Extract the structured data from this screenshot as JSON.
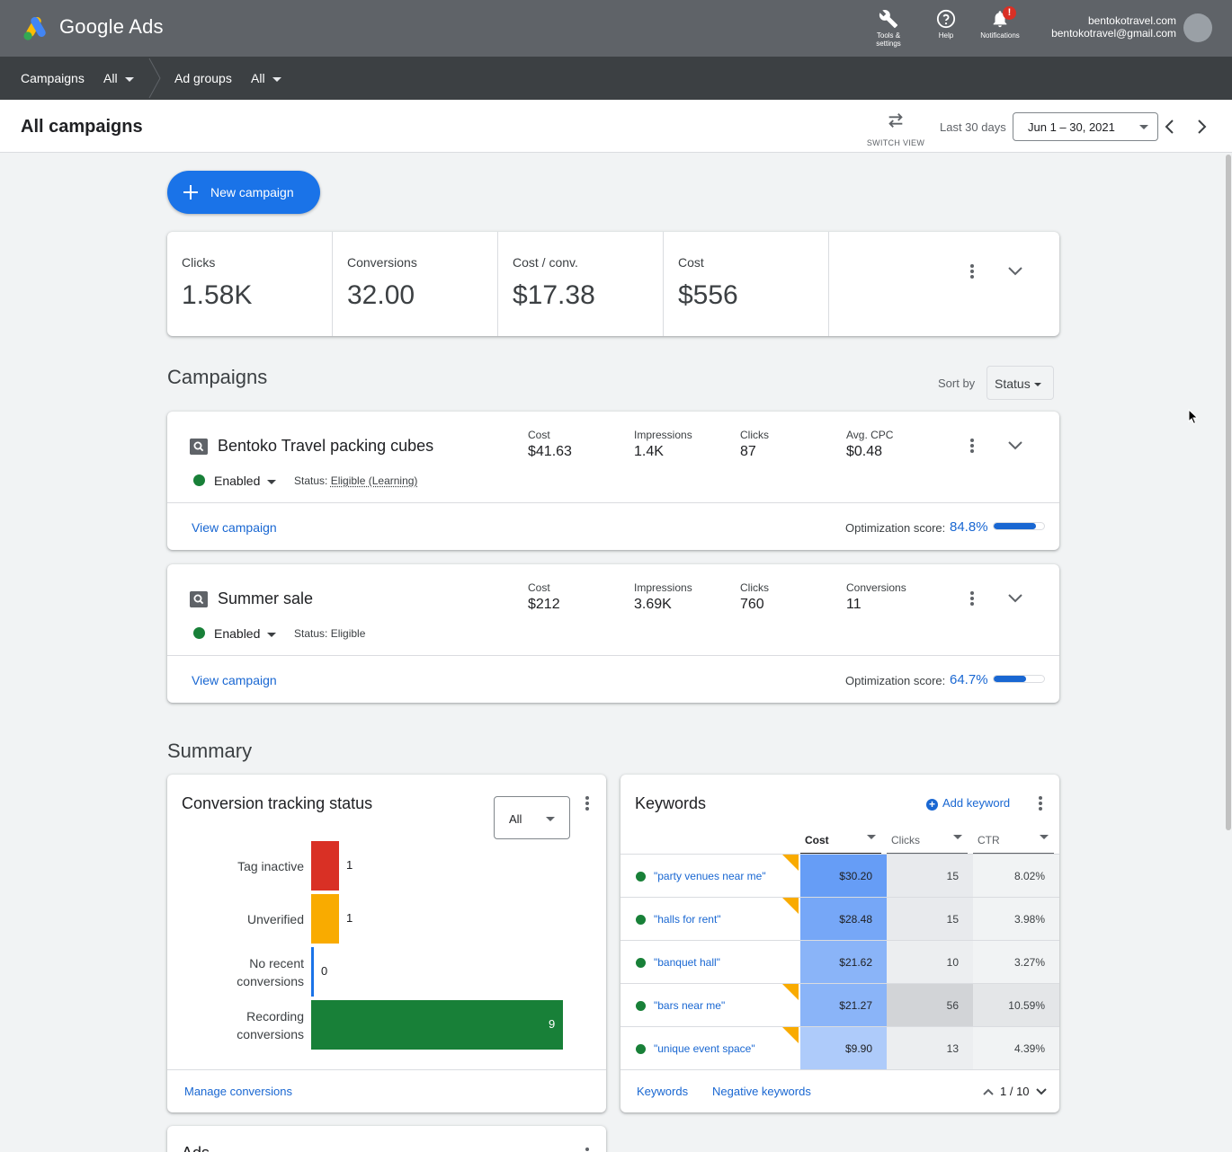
{
  "app": {
    "brand": "Google Ads"
  },
  "header": {
    "tools_label_1": "Tools &",
    "tools_label_2": "settings",
    "help_label": "Help",
    "notifications_label": "Notifications",
    "notification_badge": "!",
    "account_name": "bentokotravel.com",
    "account_email": "bentokotravel@gmail.com"
  },
  "breadcrumb": {
    "campaigns_label": "Campaigns",
    "campaigns_filter": "All",
    "adgroups_label": "Ad groups",
    "adgroups_filter": "All"
  },
  "titlebar": {
    "title": "All campaigns",
    "switch_view": "SWITCH VIEW",
    "range_label": "Last 30 days",
    "date_range": "Jun 1 – 30, 2021"
  },
  "new_campaign_label": "New campaign",
  "stats": [
    {
      "label": "Clicks",
      "value": "1.58K"
    },
    {
      "label": "Conversions",
      "value": "32.00"
    },
    {
      "label": "Cost / conv.",
      "value": "$17.38"
    },
    {
      "label": "Cost",
      "value": "$556"
    }
  ],
  "campaigns_section": {
    "title": "Campaigns",
    "sort_label": "Sort by",
    "sort_value": "Status"
  },
  "campaigns": [
    {
      "name": "Bentoko Travel packing cubes",
      "state": "Enabled",
      "status_label": "Status:",
      "status_value": "Eligible (Learning)",
      "metrics": [
        {
          "label": "Cost",
          "value": "$41.63"
        },
        {
          "label": "Impressions",
          "value": "1.4K"
        },
        {
          "label": "Clicks",
          "value": "87"
        },
        {
          "label": "Avg. CPC",
          "value": "$0.48"
        }
      ],
      "view_link": "View campaign",
      "opt_label": "Optimization score:",
      "opt_score": "84.8%",
      "opt_fraction": 0.848
    },
    {
      "name": "Summer sale",
      "state": "Enabled",
      "status_label": "Status:",
      "status_value": "Eligible",
      "metrics": [
        {
          "label": "Cost",
          "value": "$212"
        },
        {
          "label": "Impressions",
          "value": "3.69K"
        },
        {
          "label": "Clicks",
          "value": "760"
        },
        {
          "label": "Conversions",
          "value": "11"
        }
      ],
      "view_link": "View campaign",
      "opt_label": "Optimization score:",
      "opt_score": "64.7%",
      "opt_fraction": 0.647
    }
  ],
  "summary_title": "Summary",
  "conversion_tracking": {
    "title": "Conversion tracking status",
    "filter": "All",
    "bars": [
      {
        "label_1": "Tag inactive",
        "label_2": "",
        "value": 1,
        "color": "#d93025"
      },
      {
        "label_1": "Unverified",
        "label_2": "",
        "value": 1,
        "color": "#f9ab00"
      },
      {
        "label_1": "No recent",
        "label_2": "conversions",
        "value": 0,
        "color": "#1a73e8"
      },
      {
        "label_1": "Recording",
        "label_2": "conversions",
        "value": 9,
        "color": "#188038"
      }
    ],
    "manage_link": "Manage conversions"
  },
  "keywords": {
    "title": "Keywords",
    "add_label": "Add keyword",
    "columns": [
      "Cost",
      "Clicks",
      "CTR"
    ],
    "rows": [
      {
        "keyword": "\"party venues near me\"",
        "cost": "$30.20",
        "clicks": "15",
        "ctr": "8.02%",
        "flag": true
      },
      {
        "keyword": "\"halls for rent\"",
        "cost": "$28.48",
        "clicks": "15",
        "ctr": "3.98%",
        "flag": true
      },
      {
        "keyword": "\"banquet hall\"",
        "cost": "$21.62",
        "clicks": "10",
        "ctr": "3.27%",
        "flag": false
      },
      {
        "keyword": "\"bars near me\"",
        "cost": "$21.27",
        "clicks": "56",
        "ctr": "10.59%",
        "flag": true
      },
      {
        "keyword": "\"unique event space\"",
        "cost": "$9.90",
        "clicks": "13",
        "ctr": "4.39%",
        "flag": true
      }
    ],
    "footer_keywords": "Keywords",
    "footer_negative": "Negative keywords",
    "pager": "1 / 10"
  },
  "ads_title": "Ads",
  "colors": {
    "accent": "#1a73e8",
    "link": "#1967d2",
    "header": "#5f6368",
    "crumbbar": "#3c4043"
  }
}
